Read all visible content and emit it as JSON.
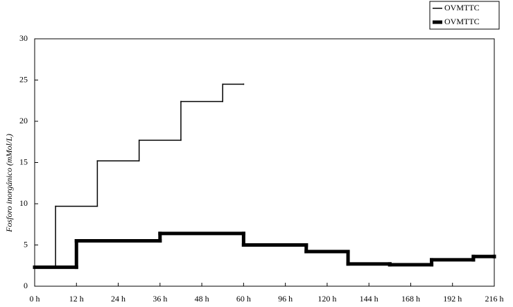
{
  "chart_data": {
    "type": "step",
    "y_label": "Fosforo inorgánico (mMol/L)",
    "series": [
      {
        "name": "OVMTTC",
        "color": "#000000",
        "line_width": 1.5,
        "x": [
          0,
          6,
          18,
          30,
          42,
          54,
          60
        ],
        "values": [
          2.3,
          9.7,
          15.2,
          17.7,
          22.4,
          24.5,
          24.5
        ]
      },
      {
        "name": "OVMTTC",
        "color": "#000000",
        "line_width": 5,
        "x": [
          0,
          12,
          36,
          60,
          108,
          132,
          156,
          180,
          204,
          216
        ],
        "values": [
          2.3,
          5.5,
          6.4,
          5.0,
          4.2,
          2.7,
          2.6,
          3.2,
          3.6,
          3.6
        ]
      }
    ],
    "xlim": [
      0,
      216
    ],
    "xticks": [
      {
        "value": 0,
        "label": "0 h"
      },
      {
        "value": 12,
        "label": "12 h"
      },
      {
        "value": 24,
        "label": "24 h"
      },
      {
        "value": 36,
        "label": "36 h"
      },
      {
        "value": 48,
        "label": "48 h"
      },
      {
        "value": 60,
        "label": "60 h"
      },
      {
        "value": 96,
        "label": "96 h"
      },
      {
        "value": 120,
        "label": "120 h"
      },
      {
        "value": 144,
        "label": "144 h"
      },
      {
        "value": 168,
        "label": "168 h"
      },
      {
        "value": 192,
        "label": "192 h"
      },
      {
        "value": 216,
        "label": "216 h"
      }
    ],
    "ylim": [
      0,
      30
    ],
    "yticks": [
      0,
      5,
      10,
      15,
      20,
      25,
      30
    ],
    "legend": "top-right"
  }
}
